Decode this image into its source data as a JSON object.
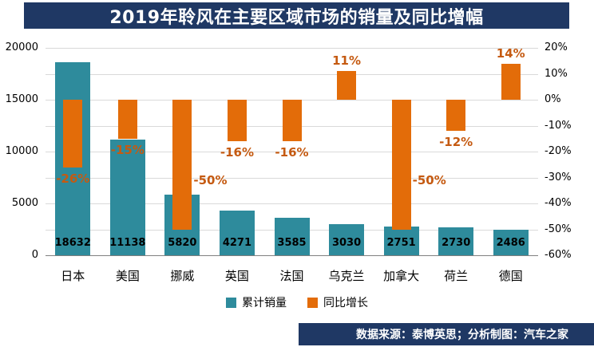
{
  "title": "2019年聆风在主要区域市场的销量及同比增幅",
  "footer": "数据来源：泰博英思；分析制图：汽车之家",
  "legend": {
    "sales": "累计销量",
    "growth": "同比增长"
  },
  "colors": {
    "navy": "#1F3864",
    "teal": "#2E8B9C",
    "orange": "#E36C09",
    "orange_text": "#C55A11",
    "grid": "#D9D9D9",
    "axis": "#7F7F7F"
  },
  "chart_data": {
    "type": "bar",
    "title": "2019年聆风在主要区域市场的销量及同比增幅",
    "categories": [
      "日本",
      "美国",
      "挪威",
      "英国",
      "法国",
      "乌克兰",
      "加拿大",
      "荷兰",
      "德国"
    ],
    "series": [
      {
        "name": "累计销量",
        "axis": "left",
        "values": [
          18632,
          11138,
          5820,
          4271,
          3585,
          3030,
          2751,
          2730,
          2486
        ]
      },
      {
        "name": "同比增长",
        "axis": "right",
        "unit": "%",
        "values": [
          -26,
          -15,
          -50,
          -16,
          -16,
          11,
          -50,
          -12,
          14
        ]
      }
    ],
    "left_axis": {
      "min": 0,
      "max": 20000,
      "ticks": [
        0,
        5000,
        10000,
        15000,
        20000
      ]
    },
    "right_axis": {
      "min": -60,
      "max": 20,
      "ticks": [
        20,
        10,
        0,
        -10,
        -20,
        -30,
        -40,
        -50,
        -60
      ],
      "suffix": "%"
    },
    "grid": true,
    "legend_position": "bottom",
    "data_labels": true
  }
}
